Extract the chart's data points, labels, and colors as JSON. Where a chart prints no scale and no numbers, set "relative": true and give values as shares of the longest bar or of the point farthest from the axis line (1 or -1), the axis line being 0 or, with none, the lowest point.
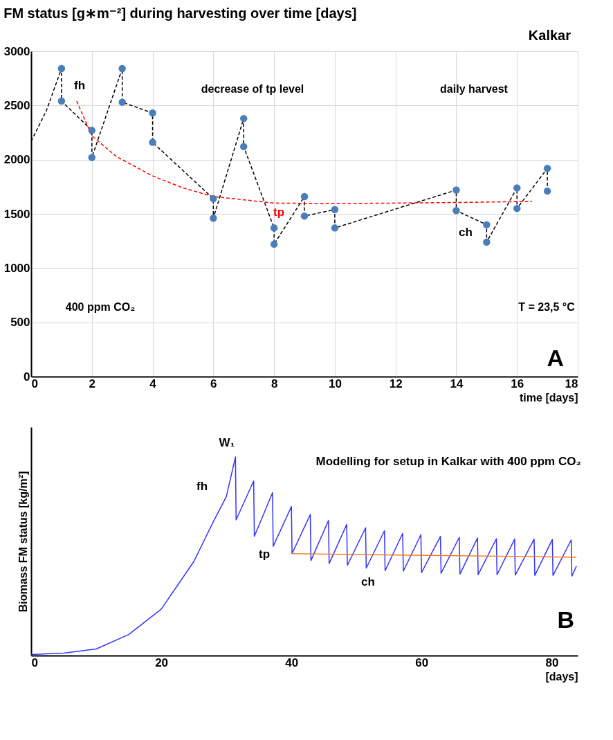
{
  "chart_data": [
    {
      "type": "scatter",
      "title": "FM status [g∗m⁻²] during harvesting over time [days]",
      "xlabel": "time [days]",
      "xlim": [
        0,
        18
      ],
      "xticks": [
        0,
        2,
        4,
        6,
        8,
        10,
        12,
        14,
        16,
        18
      ],
      "ylim": [
        0,
        3000
      ],
      "yticks": [
        0,
        500,
        1000,
        1500,
        2000,
        2500,
        3000
      ],
      "grid": true,
      "series": [
        {
          "type": "line",
          "color": "#000000",
          "line_style": "dashed",
          "x": [
            0,
            0.5,
            1,
            1,
            2,
            2,
            3,
            3,
            4,
            4,
            6,
            6,
            7,
            7,
            8,
            8,
            9,
            9,
            10,
            10,
            14,
            14,
            15,
            15,
            16,
            16,
            17,
            17
          ],
          "values": [
            2170,
            2450,
            2840,
            2540,
            2270,
            2020,
            2840,
            2530,
            2430,
            2160,
            1640,
            1460,
            2380,
            2120,
            1370,
            1220,
            1660,
            1480,
            1540,
            1370,
            1720,
            1530,
            1400,
            1240,
            1740,
            1550,
            1920,
            1710
          ]
        },
        {
          "type": "line",
          "color": "#ff0000",
          "line_style": "dashed",
          "x": [
            1.5,
            2,
            2.8,
            4,
            5,
            6,
            8,
            10,
            12,
            14,
            16.5
          ],
          "values": [
            2540,
            2220,
            2030,
            1850,
            1740,
            1660,
            1600,
            1595,
            1600,
            1605,
            1615
          ]
        },
        {
          "type": "scatter",
          "color": "#4a7ebb",
          "marker": "circle",
          "x": [
            1,
            1,
            2,
            2,
            3,
            3,
            4,
            4,
            6,
            6,
            7,
            7,
            8,
            8,
            9,
            9,
            10,
            10,
            14,
            14,
            15,
            15,
            16,
            16,
            17,
            17
          ],
          "values": [
            2840,
            2540,
            2270,
            2020,
            2840,
            2530,
            2430,
            2160,
            1640,
            1460,
            2380,
            2120,
            1370,
            1220,
            1660,
            1480,
            1540,
            1370,
            1720,
            1530,
            1400,
            1240,
            1740,
            1550,
            1920,
            1710
          ]
        }
      ],
      "annotations": [
        "Kalkar",
        "daily harvest",
        "400 ppm CO₂",
        "T = 23,5 °C",
        "A",
        "decrease of tp level",
        "fh",
        "tp",
        "ch"
      ]
    },
    {
      "type": "line",
      "relative": true,
      "xlabel": "[days]",
      "ylabel": "Biomass FM status [kg/m²]",
      "xlim": [
        0,
        84
      ],
      "xticks": [
        0,
        20,
        40,
        60,
        80
      ],
      "tick_labels": "x",
      "grid": false,
      "series": [
        {
          "color": "#3333ff",
          "x": [
            0,
            5,
            10,
            15,
            20,
            25,
            28,
            30,
            31.4,
            31.5,
            34.2,
            34.3,
            37.1,
            37.2,
            40.0,
            40.1,
            42.9,
            43.0,
            45.7,
            45.8,
            48.5,
            48.6,
            51.4,
            51.5,
            54.3,
            54.4,
            57.1,
            57.2,
            59.9,
            60.0,
            62.9,
            63.0,
            65.8,
            65.9,
            68.6,
            68.7,
            71.5,
            71.6,
            74.3,
            74.4,
            77.3,
            77.4,
            80.1,
            80.2,
            83.0,
            83.1,
            83.8
          ],
          "values": [
            0.005,
            0.012,
            0.033,
            0.106,
            0.234,
            0.473,
            0.674,
            0.8,
            1.0,
            0.683,
            0.879,
            0.6,
            0.82,
            0.55,
            0.75,
            0.513,
            0.71,
            0.478,
            0.68,
            0.463,
            0.66,
            0.454,
            0.643,
            0.44,
            0.628,
            0.427,
            0.615,
            0.425,
            0.608,
            0.418,
            0.6,
            0.414,
            0.595,
            0.41,
            0.592,
            0.407,
            0.588,
            0.407,
            0.586,
            0.405,
            0.586,
            0.403,
            0.584,
            0.403,
            0.582,
            0.4,
            0.45
          ]
        },
        {
          "color": "#f08020",
          "x": [
            40.0,
            83.8
          ],
          "values": [
            0.513,
            0.495
          ]
        }
      ],
      "annotations": [
        "Modelling for setup in Kalkar with 400 ppm CO₂",
        "B",
        "W₁",
        "fh",
        "tp",
        "ch"
      ]
    }
  ]
}
